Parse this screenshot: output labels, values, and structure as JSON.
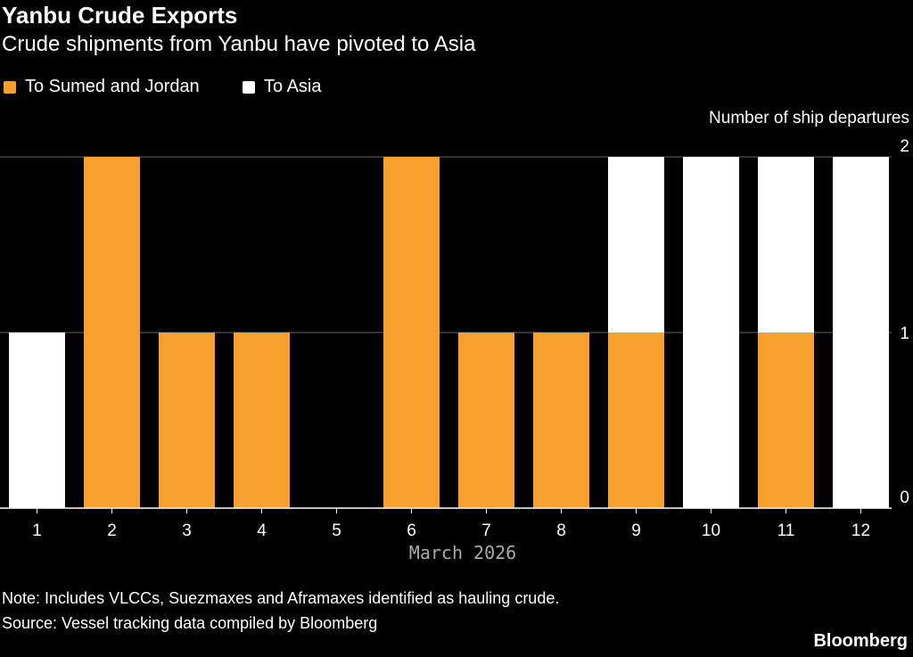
{
  "chart_data": {
    "type": "bar",
    "stacked": true,
    "title": "Yanbu Crude Exports",
    "subtitle": "Crude shipments from Yanbu have pivoted to Asia",
    "xlabel": "March 2026",
    "ylabel": "Number of ship departures",
    "categories": [
      "1",
      "2",
      "3",
      "4",
      "5",
      "6",
      "7",
      "8",
      "9",
      "10",
      "11",
      "12"
    ],
    "series": [
      {
        "name": "To Sumed and Jordan",
        "color": "#f7a030",
        "values": [
          0,
          2,
          1,
          1,
          0,
          2,
          1,
          1,
          1,
          0,
          1,
          0
        ]
      },
      {
        "name": "To Asia",
        "color": "#ffffff",
        "values": [
          1,
          0,
          0,
          0,
          0,
          0,
          0,
          0,
          1,
          2,
          1,
          2
        ]
      }
    ],
    "ylim": [
      0,
      2
    ],
    "yticks": [
      "0",
      "1",
      "2"
    ],
    "grid": true,
    "legend_position": "top-left",
    "notes": [
      "Note: Includes VLCCs, Suezmaxes and Aframaxes identified as hauling crude.",
      "Source: Vessel tracking data compiled by Bloomberg"
    ],
    "brand": "Bloomberg"
  }
}
